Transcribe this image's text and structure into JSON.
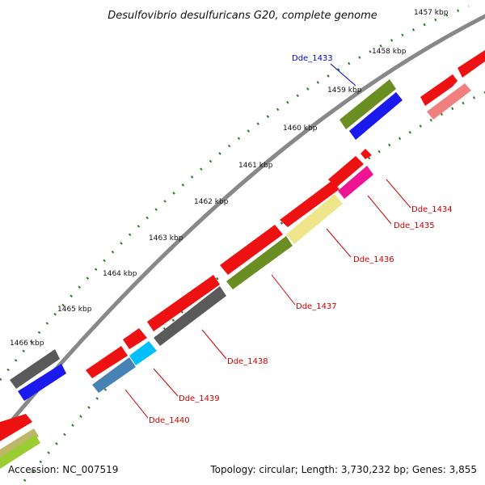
{
  "title": "Desulfovibrio desulfuricans G20, complete genome",
  "accession_text": "Accession: NC_007519",
  "topology_text": "Topology: circular; Length: 3,730,232 bp; Genes: 3,855",
  "ticks": [
    "1457 kbp",
    "1458 kbp",
    "1459 kbp",
    "1460 kbp",
    "1461 kbp",
    "1462 kbp",
    "1463 kbp",
    "1464 kbp",
    "1465 kbp",
    "1466 kbp"
  ],
  "gene_labels": [
    {
      "name": "Dde_1433",
      "color": "#0000cc"
    },
    {
      "name": "Dde_1434",
      "color": "#cc0000"
    },
    {
      "name": "Dde_1435",
      "color": "#cc0000"
    },
    {
      "name": "Dde_1436",
      "color": "#cc0000"
    },
    {
      "name": "Dde_1437",
      "color": "#cc0000"
    },
    {
      "name": "Dde_1438",
      "color": "#cc0000"
    },
    {
      "name": "Dde_1439",
      "color": "#cc0000"
    },
    {
      "name": "Dde_1440",
      "color": "#cc0000"
    }
  ],
  "colors": {
    "backbone": "#888888",
    "tick": "#2a7a2a",
    "red": "#ee1111",
    "blue": "#1a1aee",
    "olive": "#6b8e23",
    "gray": "#5a5a5a",
    "pink": "#f08080",
    "magenta": "#ee1493",
    "khaki": "#efe68c",
    "cyan": "#00bfff",
    "steelblue": "#4682b4",
    "lime": "#9acd32",
    "darkkhaki": "#bdb76b"
  }
}
